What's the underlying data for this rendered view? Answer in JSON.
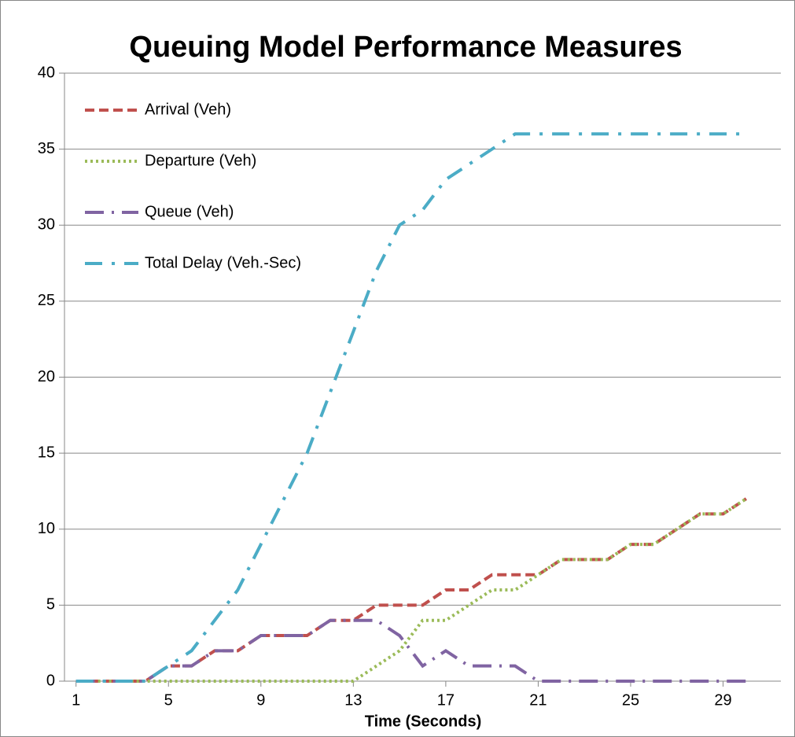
{
  "chart_data": {
    "type": "line",
    "title": "Queuing Model Performance Measures",
    "x_label": "Time (Seconds)",
    "x": [
      1,
      2,
      3,
      4,
      5,
      6,
      7,
      8,
      9,
      10,
      11,
      12,
      13,
      14,
      15,
      16,
      17,
      18,
      19,
      20,
      21,
      22,
      23,
      24,
      25,
      26,
      27,
      28,
      29,
      30
    ],
    "xlim": [
      0.5,
      31.5
    ],
    "xticks": [
      1,
      5,
      9,
      13,
      17,
      21,
      25,
      29
    ],
    "ylim": [
      0,
      40
    ],
    "yticks": [
      0,
      5,
      10,
      15,
      20,
      25,
      30,
      35,
      40
    ],
    "grid": true,
    "legend": "top-left",
    "series": [
      {
        "name": "Arrival (Veh)",
        "color": "#c0504d",
        "dash": "dashed",
        "values": [
          0,
          0,
          0,
          0,
          1,
          1,
          2,
          2,
          3,
          3,
          3,
          4,
          4,
          5,
          5,
          5,
          6,
          6,
          7,
          7,
          7,
          8,
          8,
          8,
          9,
          9,
          10,
          11,
          11,
          12
        ]
      },
      {
        "name": "Departure (Veh)",
        "color": "#9bbb59",
        "dash": "dotted",
        "values": [
          0,
          0,
          0,
          0,
          0,
          0,
          0,
          0,
          0,
          0,
          0,
          0,
          0,
          1,
          2,
          4,
          4,
          5,
          6,
          6,
          7,
          8,
          8,
          8,
          9,
          9,
          10,
          11,
          11,
          12
        ]
      },
      {
        "name": "Queue (Veh)",
        "color": "#8064a2",
        "dash": "long-dash-dot",
        "values": [
          0,
          0,
          0,
          0,
          1,
          1,
          2,
          2,
          3,
          3,
          3,
          4,
          4,
          4,
          3,
          1,
          2,
          1,
          1,
          1,
          0,
          0,
          0,
          0,
          0,
          0,
          0,
          0,
          0,
          0
        ]
      },
      {
        "name": "Total Delay (Veh.-Sec)",
        "color": "#4bacc6",
        "dash": "dash-dot",
        "values": [
          0,
          0,
          0,
          0,
          1,
          2,
          4,
          6,
          9,
          12,
          15,
          19,
          23,
          27,
          30,
          31,
          33,
          34,
          35,
          36,
          36,
          36,
          36,
          36,
          36,
          36,
          36,
          36,
          36,
          36
        ]
      }
    ]
  }
}
